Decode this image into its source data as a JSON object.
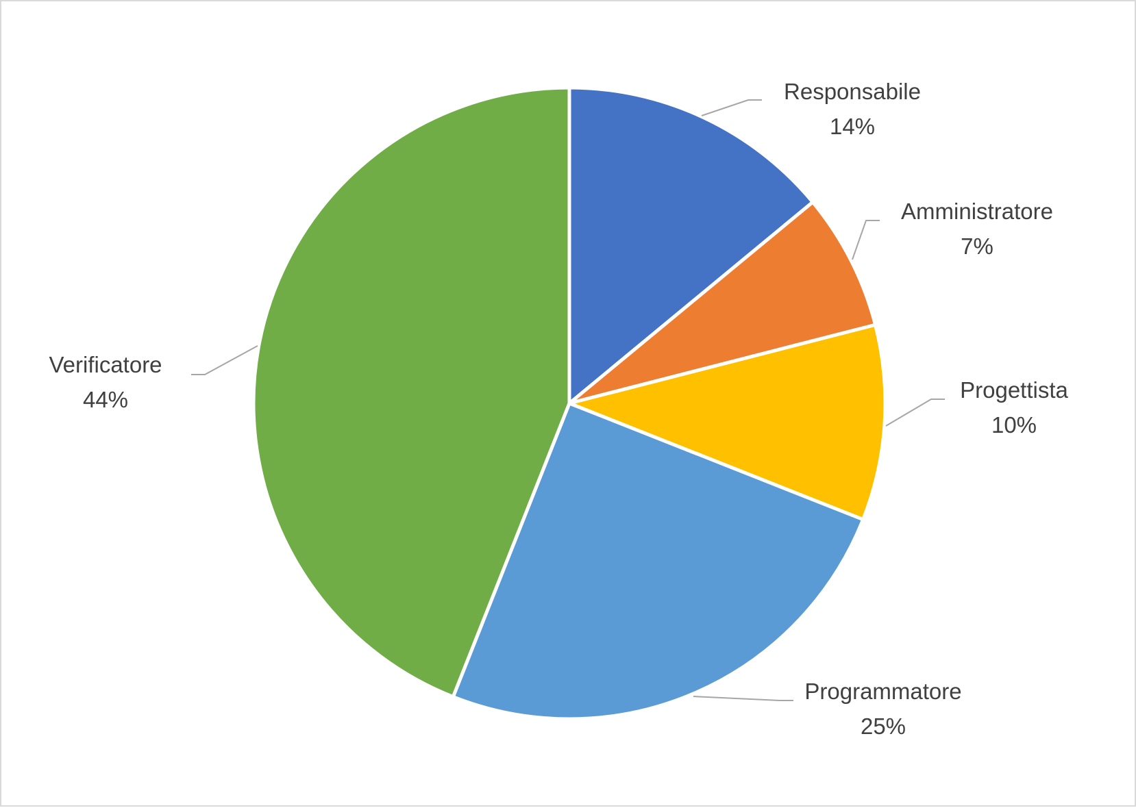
{
  "chart_data": {
    "type": "pie",
    "categories": [
      "Responsabile",
      "Amministratore",
      "Progettista",
      "Programmatore",
      "Verificatore"
    ],
    "values": [
      14,
      7,
      10,
      25,
      44
    ],
    "value_labels": [
      "14%",
      "7%",
      "10%",
      "25%",
      "44%"
    ],
    "colors": [
      "#4472c4",
      "#ed7d31",
      "#ffc000",
      "#5b9bd5",
      "#70ad47"
    ],
    "start_angle_deg": 0,
    "direction": "clockwise",
    "legend": "none",
    "data_labels": "outside-with-leader-lines"
  }
}
